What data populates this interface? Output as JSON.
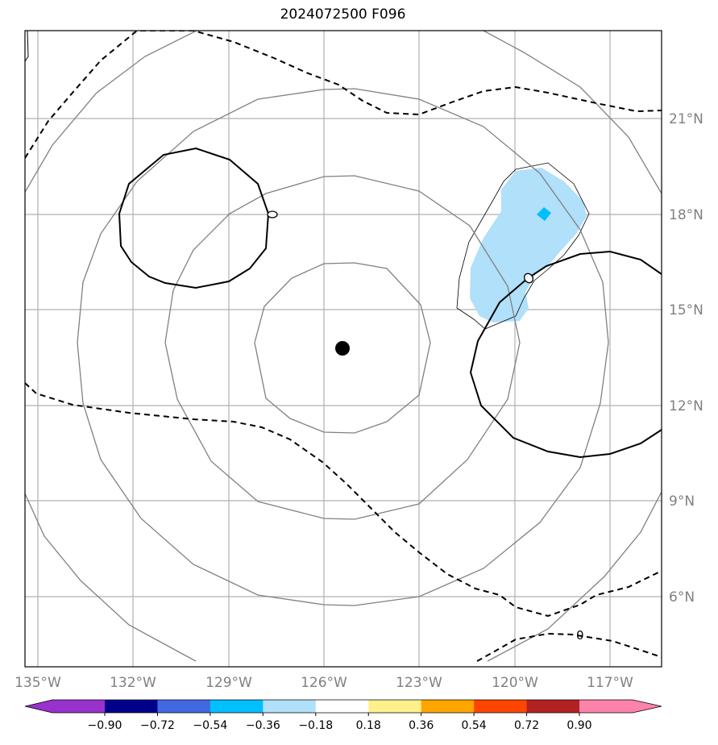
{
  "title": "2024072500 F096",
  "map": {
    "lon_range": [
      -135.4,
      -115.5
    ],
    "lat_range": [
      3.8,
      23.8
    ],
    "lon_ticks": [
      "135°W",
      "132°W",
      "129°W",
      "126°W",
      "123°W",
      "120°W",
      "117°W"
    ],
    "lat_ticks": [
      "21°N",
      "18°N",
      "15°N",
      "12°N",
      "9°N",
      "6°N"
    ],
    "grid": true,
    "storm_center": {
      "lon": -125.5,
      "lat": 13.8
    },
    "contour_labels": [
      "0",
      "0",
      "0"
    ]
  },
  "colorbar": {
    "ticks": [
      "−0.90",
      "−0.72",
      "−0.54",
      "−0.36",
      "−0.18",
      "0.18",
      "0.36",
      "0.54",
      "0.72",
      "0.90"
    ],
    "colors": [
      "#9932cc",
      "#00008b",
      "#4169e1",
      "#00bfff",
      "#b0e0fa",
      "#ffffff",
      "#fff08c",
      "#ffa500",
      "#ff4500",
      "#b22222",
      "#ff82ab"
    ],
    "under_color": "#9932cc",
    "over_color": "#ff82ab"
  },
  "colors": {
    "range_rings": "#808080",
    "grid": "#b0b0b0",
    "contour": "#000000",
    "shade": "#b0e0fa",
    "shade_core": "#00bfff"
  }
}
